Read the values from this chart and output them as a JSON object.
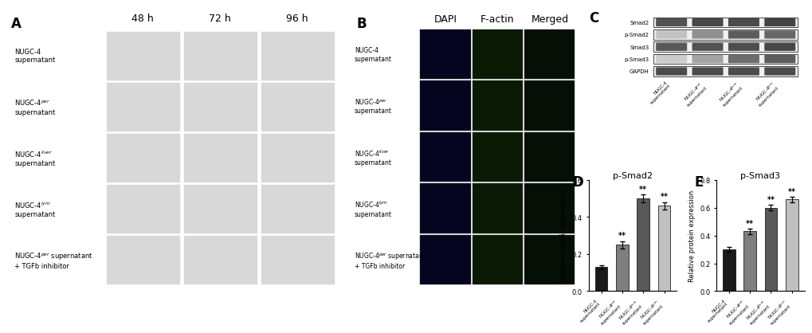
{
  "panel_D": {
    "title": "p-Smad2",
    "ylabel": "Relative protein expression",
    "categories": [
      "NUGC-4\nsupernatant",
      "NUGC-4$^{per}$\nsupernatant",
      "NUGC-4$^{liver}$\nsupernatant",
      "NUGC-4$^{lym}$\nsupernatant"
    ],
    "values": [
      0.13,
      0.25,
      0.5,
      0.46
    ],
    "errors": [
      0.01,
      0.02,
      0.02,
      0.02
    ],
    "colors": [
      "#1a1a1a",
      "#7f7f7f",
      "#595959",
      "#c0c0c0"
    ],
    "ylim": [
      0.0,
      0.6
    ],
    "yticks": [
      0.0,
      0.2,
      0.4,
      0.6
    ],
    "sig_labels": [
      "",
      "**",
      "**",
      "**"
    ]
  },
  "panel_E": {
    "title": "p-Smad3",
    "ylabel": "Relative protein expression",
    "categories": [
      "NUGC-4\nsupernatant",
      "NUGC-4$^{per}$\nsupernatant",
      "NUGC-4$^{liver}$\nsupernatant",
      "NUGC-4$^{lym}$\nsupernatant"
    ],
    "values": [
      0.3,
      0.43,
      0.6,
      0.66
    ],
    "errors": [
      0.015,
      0.02,
      0.02,
      0.02
    ],
    "colors": [
      "#1a1a1a",
      "#7f7f7f",
      "#595959",
      "#c0c0c0"
    ],
    "ylim": [
      0.0,
      0.8
    ],
    "yticks": [
      0.0,
      0.2,
      0.4,
      0.6,
      0.8
    ],
    "sig_labels": [
      "",
      "**",
      "**",
      "**"
    ]
  },
  "panel_A": {
    "label": "A",
    "col_labels": [
      "48 h",
      "72 h",
      "96 h"
    ],
    "row_labels": [
      "NUGC-4\nsupernatant",
      "NUGC-4$^{per}$\nsupernatant",
      "NUGC-4$^{liver}$\nsupernatant",
      "NUGC-4$^{lym}$\nsupernatant",
      "NUGC-4$^{per}$ supernatant\n+ TGFb inhibitor"
    ]
  },
  "panel_B": {
    "label": "B",
    "col_labels": [
      "DAPI",
      "F-actin",
      "Merged"
    ],
    "row_labels": [
      "NUGC-4\nsupernatant",
      "NUGC-4$^{per}$\nsupernatant",
      "NUGC-4$^{liver}$\nsupernatant",
      "NUGC-4$^{lym}$\nsupernatant",
      "NUGC-4$^{per}$ supernatant\n+ TGFb inhibitor"
    ]
  },
  "panel_C": {
    "label": "C",
    "row_labels": [
      "Smad2",
      "p-Smad2",
      "Smad3",
      "p-Smad3",
      "GAPDH"
    ],
    "col_labels": [
      "NUGC-4\nsupernatant",
      "NUGC-4$^{per}$\nsupernatant",
      "NUGC-4$^{liver}$\nsupernatant",
      "NUGC-4$^{lym}$\nsupernatant"
    ]
  },
  "figure_bg": "#ffffff",
  "label_fontsize": 10,
  "title_fontsize": 8,
  "tick_fontsize": 6,
  "axis_label_fontsize": 6
}
